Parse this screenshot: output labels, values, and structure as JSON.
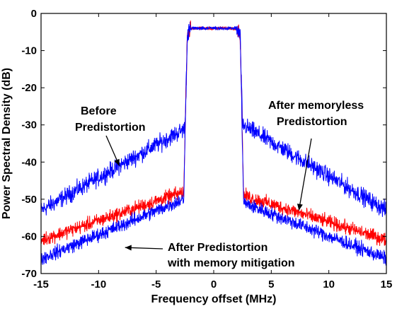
{
  "chart_data": {
    "type": "line",
    "xlabel": "Frequency offset (MHz)",
    "ylabel": "Power Spectral Density (dB)",
    "xlim": [
      -15,
      15
    ],
    "ylim": [
      -70,
      0
    ],
    "x_ticks": [
      "-15",
      "-10",
      "-5",
      "0",
      "5",
      "10",
      "15"
    ],
    "y_ticks": [
      "0",
      "-10",
      "-20",
      "-30",
      "-40",
      "-50",
      "-60",
      "-70"
    ],
    "grid": false,
    "legend": "none",
    "annotations": [
      {
        "lines": [
          "Before",
          "Predistortion"
        ],
        "points_to": [
          -8.2,
          -41
        ]
      },
      {
        "lines": [
          "After memoryless",
          "Predistortion"
        ],
        "points_to": [
          7.4,
          -53
        ]
      },
      {
        "lines": [
          "After Predistortion",
          "with memory mitigation"
        ],
        "points_to": [
          -7.7,
          -63
        ]
      }
    ],
    "series": [
      {
        "color": "#0000ff",
        "noise": 2.0,
        "points": [
          [
            -15,
            -53
          ],
          [
            -2.5,
            -31
          ],
          [
            -2.3,
            -6
          ],
          [
            -2.0,
            -4
          ],
          [
            2.0,
            -4
          ],
          [
            2.3,
            -6
          ],
          [
            2.5,
            -30
          ],
          [
            15,
            -53
          ]
        ]
      },
      {
        "color": "#ff0000",
        "noise": 1.6,
        "points": [
          [
            -15,
            -61
          ],
          [
            -2.6,
            -48
          ],
          [
            -2.3,
            -6
          ],
          [
            -2.0,
            -4
          ],
          [
            2.0,
            -4
          ],
          [
            2.3,
            -6
          ],
          [
            2.6,
            -49
          ],
          [
            15,
            -61
          ]
        ]
      },
      {
        "color": "#0000ff",
        "noise": 1.6,
        "points": [
          [
            -15,
            -66
          ],
          [
            -2.6,
            -50
          ],
          [
            -2.3,
            -6
          ],
          [
            -2.0,
            -4
          ],
          [
            2.0,
            -4
          ],
          [
            2.3,
            -6
          ],
          [
            2.6,
            -51
          ],
          [
            15,
            -66
          ]
        ]
      }
    ]
  }
}
